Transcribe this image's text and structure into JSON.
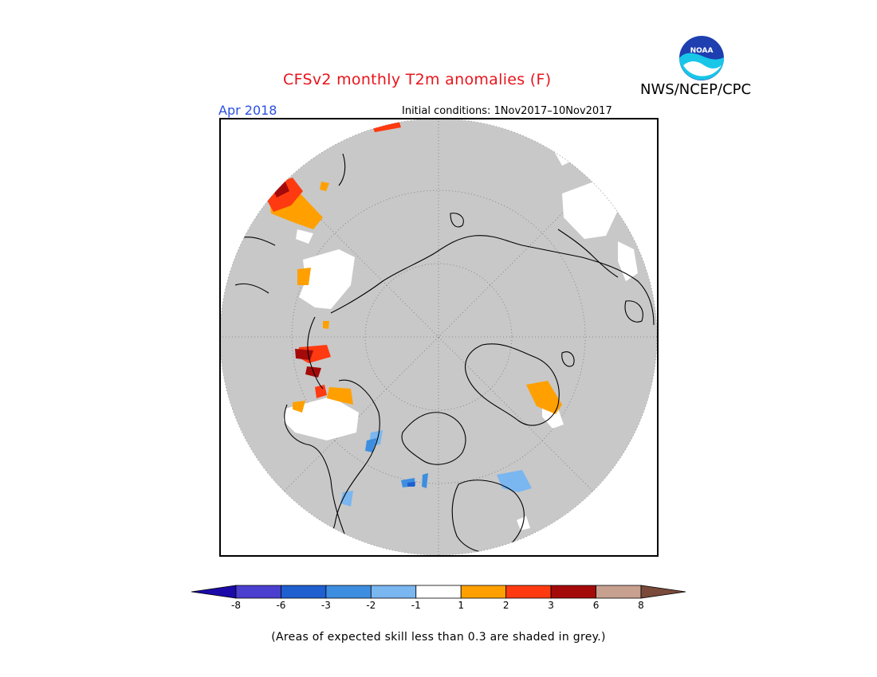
{
  "header": {
    "title": "CFSv2 monthly T2m anomalies (F)",
    "agency": "NWS/NCEP/CPC",
    "month": "Apr 2018",
    "initial_conditions": "Initial conditions: 1Nov2017–10Nov2017"
  },
  "logo": {
    "icon": "noaa-logo-icon",
    "text": "NOAA"
  },
  "legend": {
    "ticks": [
      "-8",
      "-6",
      "-3",
      "-2",
      "-1",
      "1",
      "2",
      "3",
      "6",
      "8"
    ],
    "colors": [
      "#1c0aa8",
      "#4a3fcf",
      "#1f5fd0",
      "#3d8ee0",
      "#7ab6f0",
      "#ffffff",
      "#ffa000",
      "#ff3a10",
      "#a50a0a",
      "#c8a090",
      "#7a4a3a"
    ]
  },
  "footnote": "(Areas of expected skill less than 0.3 are shaded in grey.)"
}
